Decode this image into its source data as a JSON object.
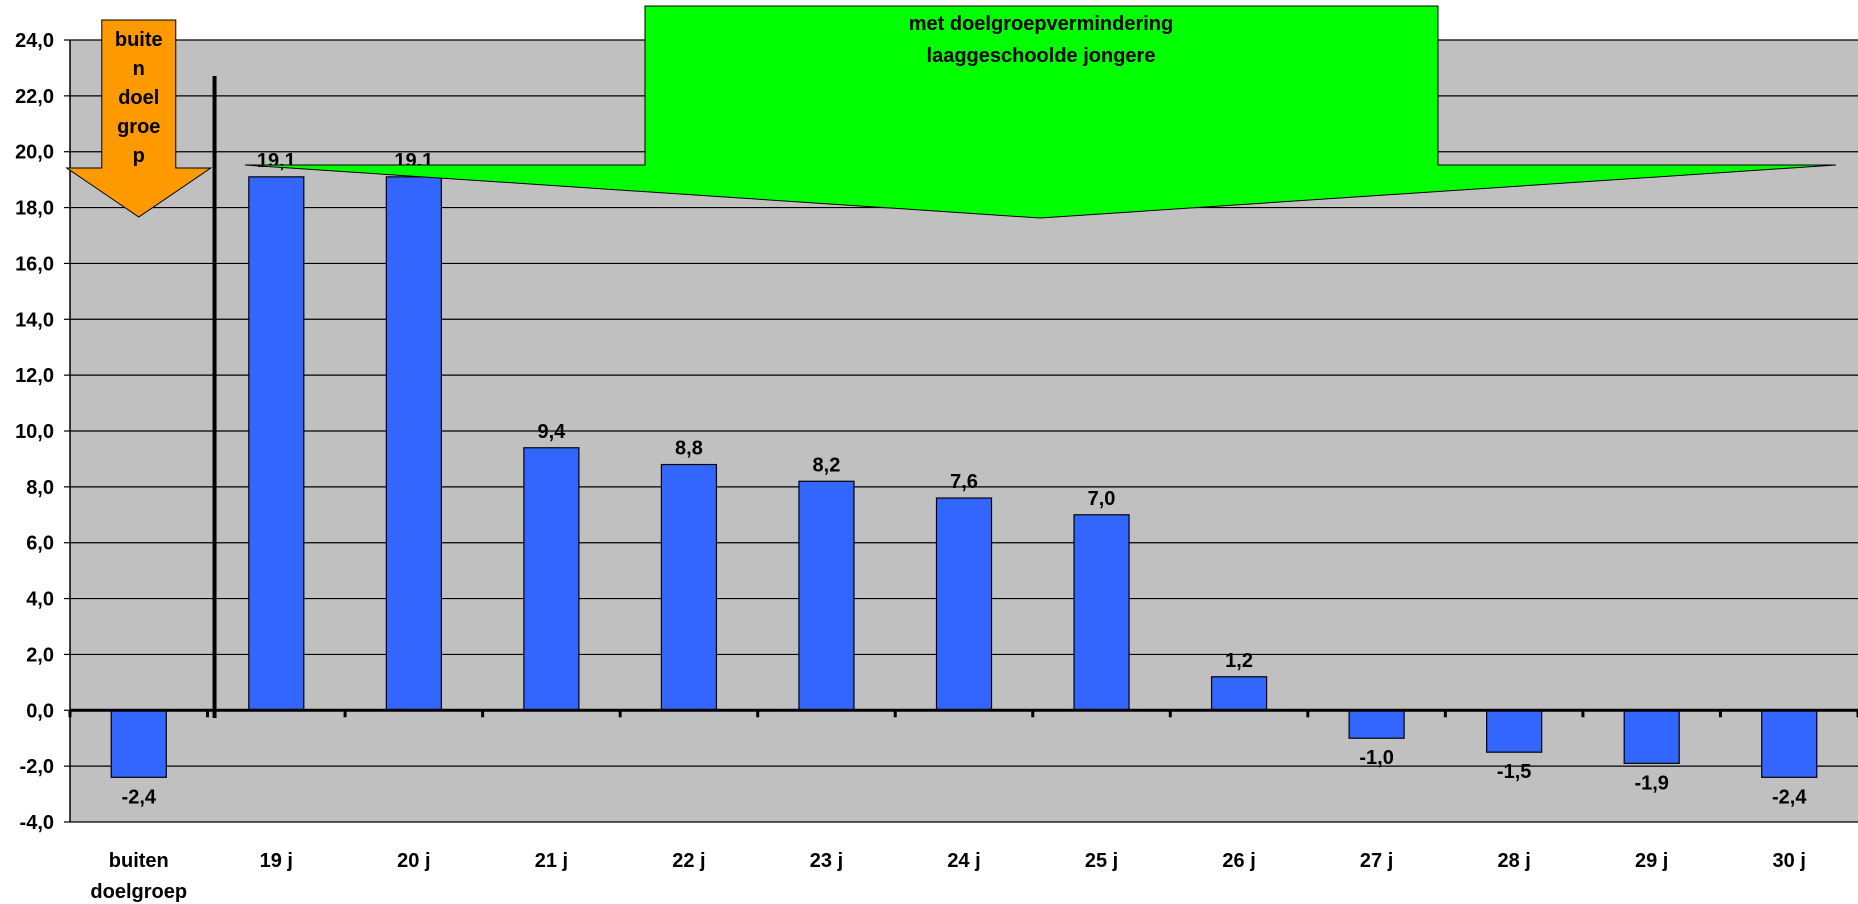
{
  "chart_data": {
    "type": "bar",
    "categories": [
      "buiten doelgroep",
      "19 j",
      "20 j",
      "21 j",
      "22 j",
      "23 j",
      "24 j",
      "25 j",
      "26 j",
      "27 j",
      "28 j",
      "29 j",
      "30 j"
    ],
    "category_lines": [
      [
        "buiten",
        "doelgroep"
      ],
      [
        "19 j"
      ],
      [
        "20 j"
      ],
      [
        "21 j"
      ],
      [
        "22 j"
      ],
      [
        "23 j"
      ],
      [
        "24 j"
      ],
      [
        "25 j"
      ],
      [
        "26 j"
      ],
      [
        "27 j"
      ],
      [
        "28 j"
      ],
      [
        "29 j"
      ],
      [
        "30 j"
      ]
    ],
    "values": [
      -2.4,
      19.1,
      19.1,
      9.4,
      8.8,
      8.2,
      7.6,
      7.0,
      1.2,
      -1.0,
      -1.5,
      -1.9,
      -2.4
    ],
    "value_labels": [
      "-2,4",
      "19,1",
      "19,1",
      "9,4",
      "8,8",
      "8,2",
      "7,6",
      "7,0",
      "1,2",
      "-1,0",
      "-1,5",
      "-1,9",
      "-2,4"
    ],
    "ylim": [
      -4.0,
      24.0
    ],
    "y_ticks": [
      -4.0,
      -2.0,
      0.0,
      2.0,
      4.0,
      6.0,
      8.0,
      10.0,
      12.0,
      14.0,
      16.0,
      18.0,
      20.0,
      22.0,
      24.0
    ],
    "y_tick_labels": [
      "-4,0",
      "-2,0",
      "0,0",
      "2,0",
      "4,0",
      "6,0",
      "8,0",
      "10,0",
      "12,0",
      "14,0",
      "16,0",
      "18,0",
      "20,0",
      "22,0",
      "24,0"
    ],
    "grid": true,
    "xlabel": "",
    "ylabel": ""
  },
  "annotations": {
    "left_arrow_lines": [
      "buite",
      "n",
      "doel",
      "groe",
      "p"
    ],
    "banner_lines": [
      "met doelgroepvermindering",
      "laaggeschoolde jongere"
    ]
  },
  "colors": {
    "plot_background": "#c0c0c0",
    "bar_fill": "#3366ff",
    "bar_stroke": "#000000",
    "grid": "#000000",
    "orange_arrow": "#ff9900",
    "green_banner": "#00ff00"
  }
}
